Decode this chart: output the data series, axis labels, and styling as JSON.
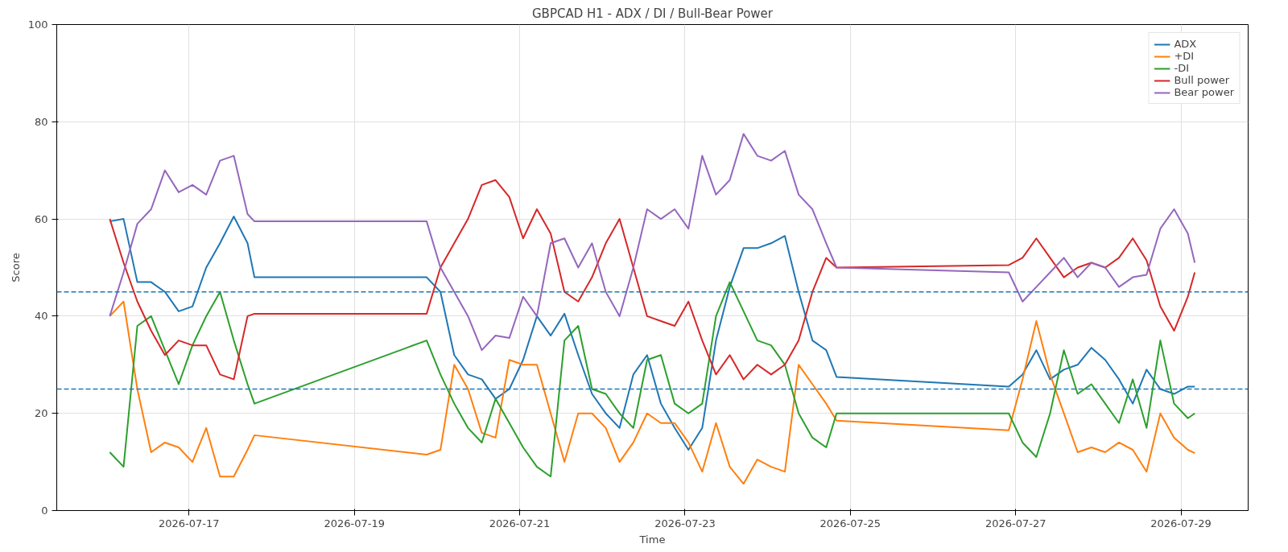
{
  "chart_data": {
    "type": "line",
    "title": "GBPCAD H1 - ADX / DI / Bull-Bear Power",
    "xlabel": "Time",
    "ylabel": "Score",
    "x": [
      "2026-07-16T01:00",
      "2026-07-16T05:00",
      "2026-07-16T09:00",
      "2026-07-16T13:00",
      "2026-07-16T17:00",
      "2026-07-16T21:00",
      "2026-07-17T01:00",
      "2026-07-17T05:00",
      "2026-07-17T09:00",
      "2026-07-17T13:00",
      "2026-07-17T17:00",
      "2026-07-17T19:00",
      "2026-07-19T21:00",
      "2026-07-20T01:00",
      "2026-07-20T05:00",
      "2026-07-20T09:00",
      "2026-07-20T13:00",
      "2026-07-20T17:00",
      "2026-07-20T21:00",
      "2026-07-21T01:00",
      "2026-07-21T05:00",
      "2026-07-21T09:00",
      "2026-07-21T13:00",
      "2026-07-21T17:00",
      "2026-07-21T21:00",
      "2026-07-22T01:00",
      "2026-07-22T05:00",
      "2026-07-22T09:00",
      "2026-07-22T13:00",
      "2026-07-22T17:00",
      "2026-07-22T21:00",
      "2026-07-23T01:00",
      "2026-07-23T05:00",
      "2026-07-23T09:00",
      "2026-07-23T13:00",
      "2026-07-23T17:00",
      "2026-07-23T21:00",
      "2026-07-24T01:00",
      "2026-07-24T05:00",
      "2026-07-24T09:00",
      "2026-07-24T13:00",
      "2026-07-24T17:00",
      "2026-07-24T20:00",
      "2026-07-26T22:00",
      "2026-07-27T02:00",
      "2026-07-27T06:00",
      "2026-07-27T10:00",
      "2026-07-27T14:00",
      "2026-07-27T18:00",
      "2026-07-27T22:00",
      "2026-07-28T02:00",
      "2026-07-28T06:00",
      "2026-07-28T10:00",
      "2026-07-28T14:00",
      "2026-07-28T18:00",
      "2026-07-28T22:00",
      "2026-07-29T02:00",
      "2026-07-29T04:00"
    ],
    "series": [
      {
        "name": "ADX",
        "color": "#1f77b4",
        "values": [
          59.5,
          60,
          47,
          47,
          45,
          41,
          42,
          50,
          55,
          60.5,
          55,
          48,
          48,
          45,
          32,
          28,
          27,
          23,
          25,
          31,
          40,
          36,
          40.5,
          32,
          24,
          20,
          17,
          28,
          32,
          22,
          17,
          12.5,
          17,
          35,
          46,
          54,
          54,
          55,
          56.5,
          45,
          35,
          33,
          27.5,
          25.5,
          28,
          33,
          27,
          29,
          30,
          33.5,
          31,
          27,
          22,
          29,
          25,
          24,
          25.5,
          25.5
        ]
      },
      {
        "name": "+DI",
        "color": "#ff7f0e",
        "values": [
          40,
          43,
          25,
          12,
          14,
          13,
          10,
          17,
          7,
          7,
          12.5,
          15.5,
          11.5,
          12.5,
          30,
          25,
          16,
          15,
          31,
          30,
          30,
          20,
          10,
          20,
          20,
          17,
          10,
          14,
          20,
          18,
          18,
          14,
          8,
          18,
          9,
          5.5,
          10.5,
          9,
          8,
          30,
          26,
          22,
          18.5,
          16.5,
          27,
          39,
          28,
          20,
          12,
          13,
          12,
          14,
          12.5,
          8,
          20,
          15,
          12.5,
          11.8
        ]
      },
      {
        "name": "-DI",
        "color": "#2ca02c",
        "values": [
          12,
          9,
          38,
          40,
          33,
          26,
          34,
          40,
          45,
          35,
          26,
          22,
          35,
          28,
          22,
          17,
          14,
          23,
          18,
          13,
          9,
          7,
          35,
          38,
          25,
          24,
          20,
          17,
          31,
          32,
          22,
          20,
          22,
          40,
          47,
          41,
          35,
          34,
          30,
          20,
          15,
          13,
          20,
          20,
          14,
          11,
          20,
          33,
          24,
          26,
          22,
          18,
          27,
          17,
          35,
          22,
          19,
          20
        ]
      },
      {
        "name": "Bull power",
        "color": "#d62728",
        "values": [
          60,
          51,
          43,
          37,
          32,
          35,
          34,
          34,
          28,
          27,
          40,
          40.5,
          40.5,
          50,
          55,
          60,
          67,
          68,
          64.5,
          56,
          62,
          57,
          45,
          43,
          48,
          55,
          60,
          50,
          40,
          39,
          38,
          43,
          35,
          28,
          32,
          27,
          30,
          28,
          30,
          35,
          45,
          52,
          50,
          50.5,
          52,
          56,
          52,
          48,
          50,
          51,
          50,
          52,
          56,
          51.5,
          42,
          37,
          44,
          49
        ]
      },
      {
        "name": "Bear power",
        "color": "#9467bd",
        "values": [
          40,
          49,
          59,
          62,
          70,
          65.5,
          67,
          65,
          72,
          73,
          61,
          59.5,
          59.5,
          50,
          45,
          40,
          33,
          36,
          35.5,
          44,
          40,
          55,
          56,
          50,
          55,
          45,
          40,
          50,
          62,
          60,
          62,
          58,
          73,
          65,
          68,
          77.5,
          73,
          72,
          74,
          65,
          62,
          55,
          50,
          49,
          43,
          46,
          49,
          52,
          48,
          51,
          50,
          46,
          48,
          48.5,
          58,
          62,
          57,
          51
        ]
      }
    ],
    "xlim": [
      "2026-07-15T09:36",
      "2026-07-29T19:30"
    ],
    "xticks": [
      "2026-07-17",
      "2026-07-19",
      "2026-07-21",
      "2026-07-23",
      "2026-07-25",
      "2026-07-27",
      "2026-07-29"
    ],
    "ylim": [
      0,
      100
    ],
    "yticks": [
      0,
      20,
      40,
      60,
      80,
      100
    ],
    "ref_lines": [
      {
        "axis": "y",
        "value": 25,
        "color": "#1f77b4",
        "line_style": "dashed"
      },
      {
        "axis": "y",
        "value": 45,
        "color": "#1f77b4",
        "line_style": "dashed"
      }
    ],
    "grid": true,
    "legend": "top right"
  }
}
